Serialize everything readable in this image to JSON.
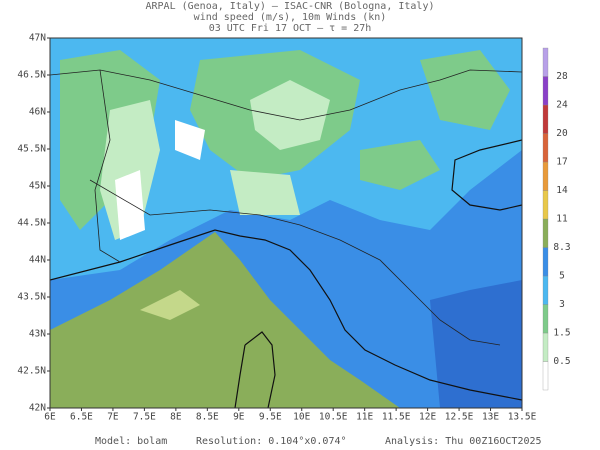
{
  "header": {
    "line1": "ARPAL (Genoa, Italy)  —  ISAC-CNR (Bologna, Italy)",
    "line2": "wind speed (m/s), 10m Winds (kn)",
    "line3": "03 UTC Fri 17 OCT  —  τ = 27h"
  },
  "axes": {
    "x_labels": [
      "6E",
      "6.5E",
      "7E",
      "7.5E",
      "8E",
      "8.5E",
      "9E",
      "9.5E",
      "10E",
      "10.5E",
      "11E",
      "11.5E",
      "12E",
      "12.5E",
      "13E",
      "13.5E"
    ],
    "y_labels": [
      "42N",
      "42.5N",
      "43N",
      "43.5N",
      "44N",
      "44.5N",
      "45N",
      "45.5N",
      "46N",
      "46.5N",
      "47N"
    ]
  },
  "colorbar": {
    "ticks": [
      0.5,
      1.5,
      3,
      5,
      8.3,
      11,
      14,
      17,
      20,
      24,
      28
    ],
    "colors": [
      "#ffffff",
      "#c4ecc4",
      "#7ecb8a",
      "#4cb8f0",
      "#3a8ee6",
      "#8aae5a",
      "#e8c84a",
      "#e89a3a",
      "#d8643a",
      "#c03a3a",
      "#8a40c8",
      "#b8a0e8"
    ]
  },
  "footer": {
    "model": "Model: bolam",
    "resolution": "Resolution: 0.104°x0.074°",
    "analysis": "Analysis: Thu 00Z16OCT2025"
  }
}
